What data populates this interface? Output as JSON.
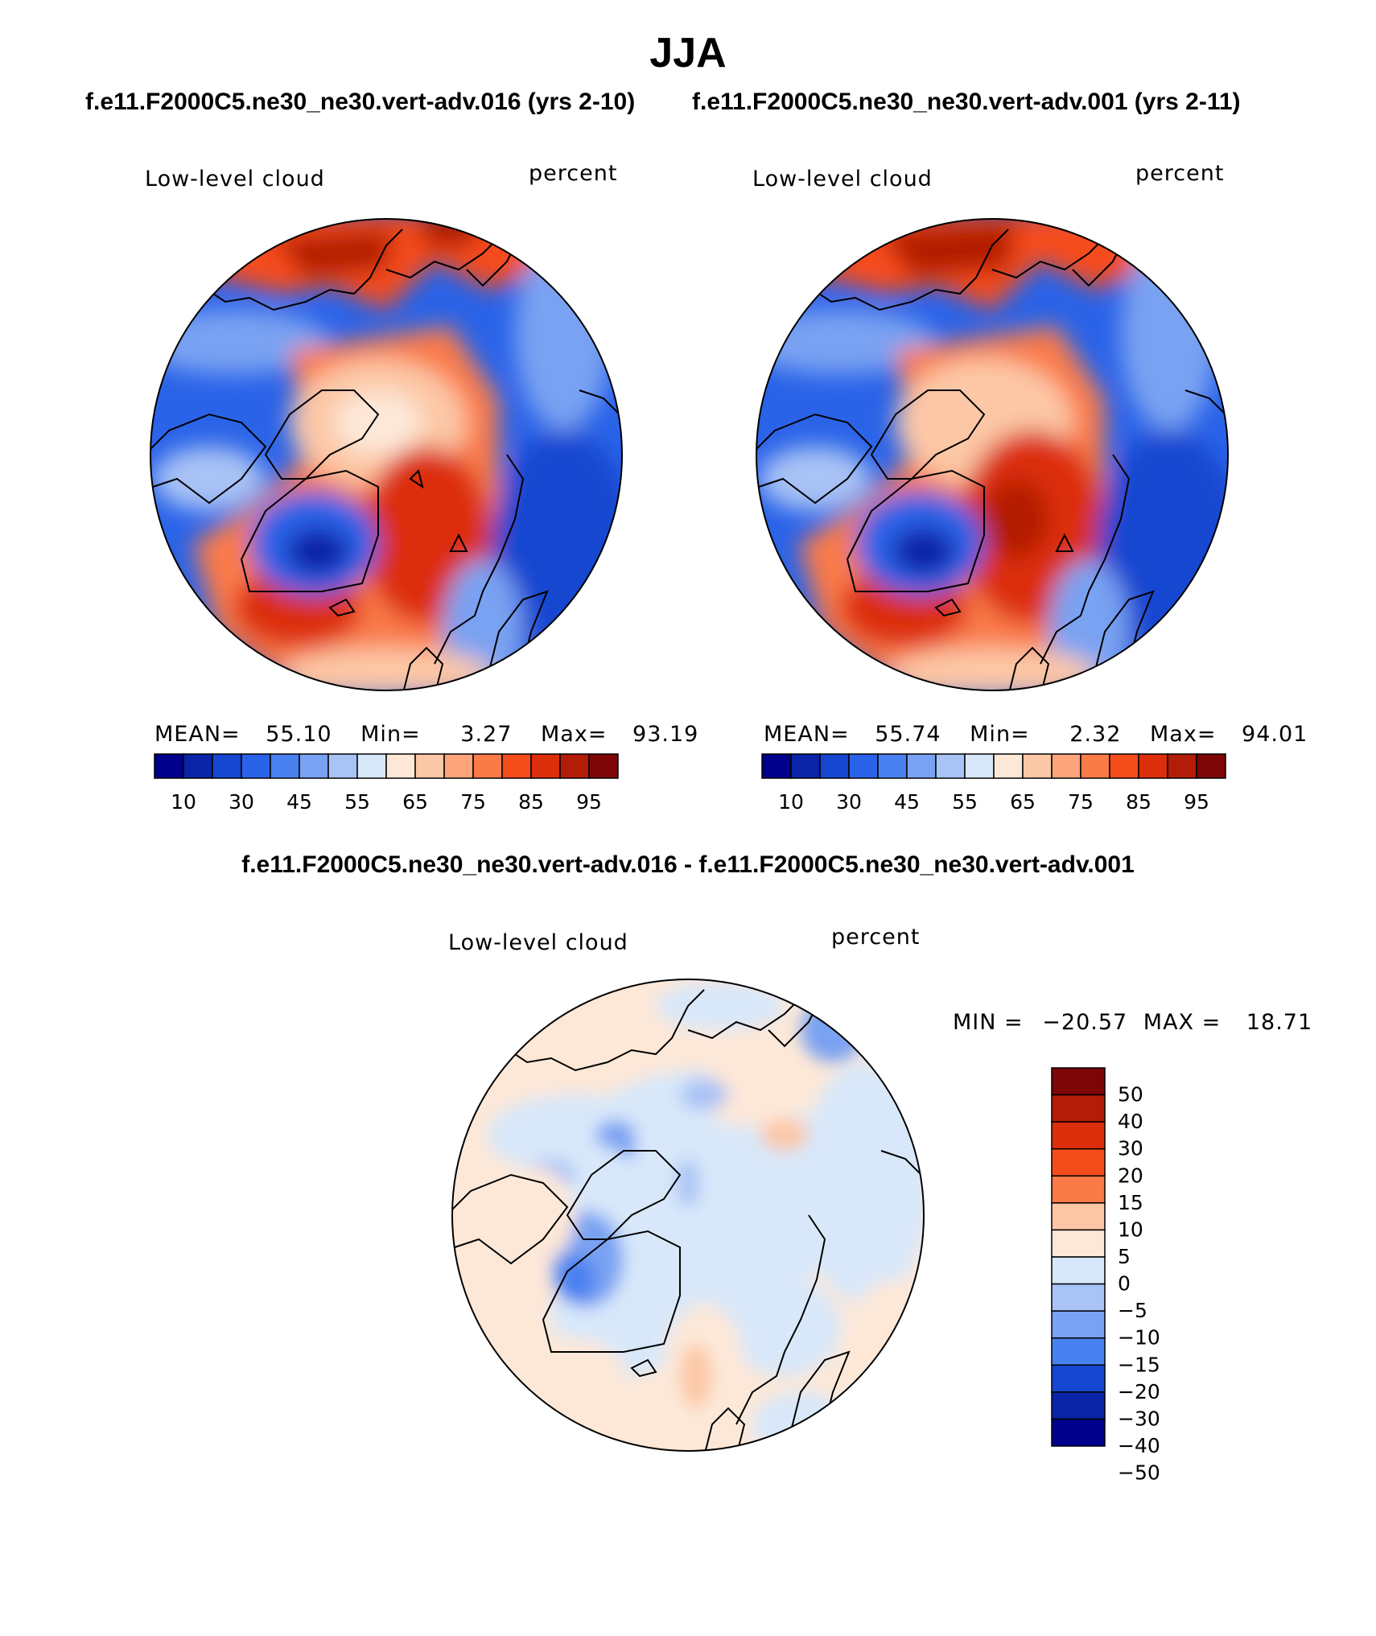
{
  "title": "JJA",
  "panels": [
    {
      "case_title": "f.e11.F2000C5.ne30_ne30.vert-adv.016 (yrs 2-10)",
      "variable": "Low-level cloud",
      "units": "percent",
      "stats": {
        "mean_label": "MEAN=",
        "mean": "55.10",
        "min_label": "Min=",
        "min": "3.27",
        "max_label": "Max=",
        "max": "93.19"
      }
    },
    {
      "case_title": "f.e11.F2000C5.ne30_ne30.vert-adv.001 (yrs 2-11)",
      "variable": "Low-level cloud",
      "units": "percent",
      "stats": {
        "mean_label": "MEAN=",
        "mean": "55.74",
        "min_label": "Min=",
        "min": "2.32",
        "max_label": "Max=",
        "max": "94.01"
      }
    }
  ],
  "mean_colorbar": {
    "colors": [
      "#00008b",
      "#0a24a8",
      "#1547d0",
      "#2a63e8",
      "#4a81f0",
      "#79a2f2",
      "#a9c3f5",
      "#d8e8fa",
      "#fde8d8",
      "#fcc7a6",
      "#fca47a",
      "#fa7a48",
      "#f54c1c",
      "#dc2e0a",
      "#b31c06",
      "#7d0505"
    ],
    "tick_labels": [
      "10",
      "30",
      "45",
      "55",
      "65",
      "75",
      "85",
      "95"
    ]
  },
  "difference": {
    "title": "f.e11.F2000C5.ne30_ne30.vert-adv.016 - f.e11.F2000C5.ne30_ne30.vert-adv.001",
    "variable": "Low-level cloud",
    "units": "percent",
    "stats": {
      "min_label": "MIN =",
      "min": "−20.57",
      "max_label": "MAX =",
      "max": "18.71"
    },
    "colorbar": {
      "colors": [
        "#7d0505",
        "#b31c06",
        "#dc2e0a",
        "#f54c1c",
        "#fa7a48",
        "#fcc7a6",
        "#fde8d8",
        "#d8e8fa",
        "#a9c3f5",
        "#79a2f2",
        "#4a81f0",
        "#1547d0",
        "#0a24a8",
        "#00008b"
      ],
      "tick_labels": [
        "50",
        "40",
        "30",
        "20",
        "15",
        "10",
        "5",
        "0",
        "−5",
        "−10",
        "−15",
        "−20",
        "−30",
        "−40",
        "−50"
      ]
    }
  },
  "map_colors": {
    "mean_a": {
      "base": "#2a63e8",
      "ocean": "#1547d0",
      "deep": "#0a24a8",
      "pale": "#d8e8fa",
      "light": "#a9c3f5",
      "mid": "#79a2f2",
      "warm1": "#fcc7a6",
      "warm2": "#fa7a48",
      "warm3": "#f54c1c",
      "warm4": "#dc2e0a",
      "warm5": "#b31c06",
      "arctic": "#fcc7a6",
      "coast": "#000000"
    },
    "diff": {
      "base": "#d8e8fa",
      "pos": "#fde8d8",
      "pos2": "#fcc7a6",
      "neg": "#a9c3f5",
      "neg2": "#4a81f0",
      "coast": "#000000"
    }
  }
}
